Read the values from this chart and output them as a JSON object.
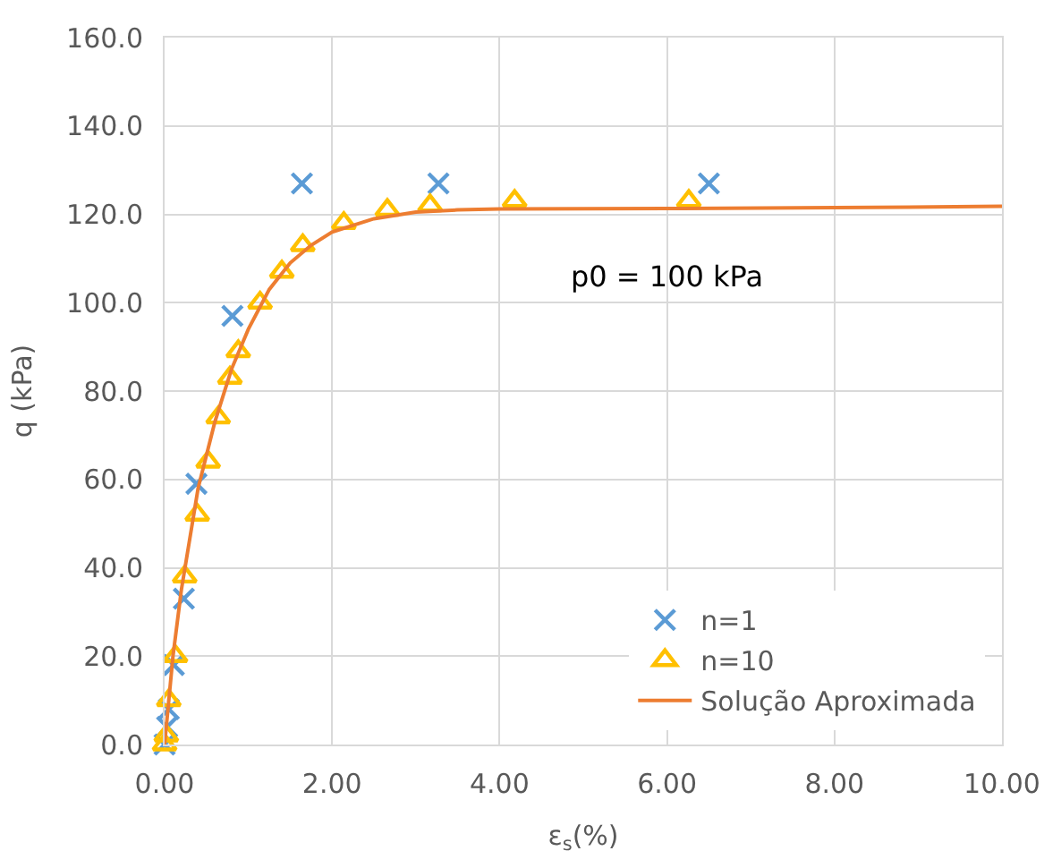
{
  "chart_data": {
    "type": "scatter",
    "xlabel": "ε$_{s}$(%)",
    "ylabel": "q (kPa)",
    "xlim": [
      0,
      10
    ],
    "ylim": [
      0,
      160
    ],
    "xticks": [
      {
        "value": 0,
        "label": "0.00"
      },
      {
        "value": 2,
        "label": "2.00"
      },
      {
        "value": 4,
        "label": "4.00"
      },
      {
        "value": 6,
        "label": "6.00"
      },
      {
        "value": 8,
        "label": "8.00"
      },
      {
        "value": 10,
        "label": "10.00"
      }
    ],
    "yticks": [
      {
        "value": 0,
        "label": "0.0"
      },
      {
        "value": 20,
        "label": "20.0"
      },
      {
        "value": 40,
        "label": "40.0"
      },
      {
        "value": 60,
        "label": "60.0"
      },
      {
        "value": 80,
        "label": "80.0"
      },
      {
        "value": 100,
        "label": "100.0"
      },
      {
        "value": 120,
        "label": "120.0"
      },
      {
        "value": 140,
        "label": "140.0"
      },
      {
        "value": 160,
        "label": "160.0"
      }
    ],
    "grid": true,
    "legend": "bottom right",
    "annotations": [
      "p0 = 100 kPa"
    ],
    "series": [
      {
        "name": "n=1",
        "marker": "cross",
        "color": "#5b9bd5",
        "x": [
          0,
          0.03,
          0.05,
          0.11,
          0.23,
          0.38,
          0.81,
          1.64,
          3.27,
          6.5
        ],
        "values": [
          0,
          4,
          8,
          18,
          33,
          59,
          97,
          127,
          127,
          127
        ]
      },
      {
        "name": "n=10",
        "marker": "triangle",
        "color": "#ffc000",
        "x": [
          0,
          0.02,
          0.05,
          0.13,
          0.24,
          0.39,
          0.52,
          0.64,
          0.78,
          0.88,
          1.14,
          1.4,
          1.65,
          2.14,
          2.66,
          3.17,
          4.18,
          6.26
        ],
        "values": [
          0,
          2,
          10,
          20,
          38,
          52,
          64,
          74,
          83,
          89,
          100,
          107,
          113,
          118,
          121,
          122,
          123,
          123
        ]
      },
      {
        "name": "Solução Aproximada",
        "type": "line",
        "marker": "none",
        "color": "#ed7d31",
        "x": [
          0,
          0.1,
          0.2,
          0.4,
          0.6,
          0.8,
          1.0,
          1.25,
          1.5,
          1.75,
          2.0,
          2.5,
          3.0,
          3.5,
          4,
          6,
          8,
          10
        ],
        "values": [
          0,
          20,
          35,
          58,
          73,
          85,
          94,
          103,
          109,
          113,
          116,
          119,
          120.5,
          121,
          121.2,
          121.3,
          121.5,
          121.8
        ]
      }
    ]
  }
}
